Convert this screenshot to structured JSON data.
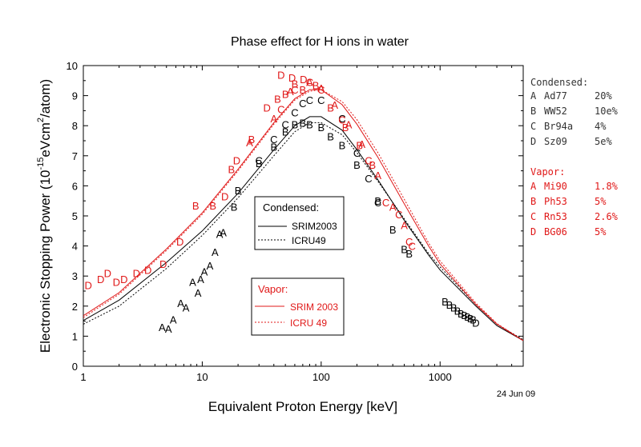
{
  "chart_data": {
    "type": "scatter",
    "title": "Phase effect for H ions in water",
    "xlabel": "Equivalent Proton Energy [keV]",
    "ylabel": {
      "pre": "Electronic Stopping Power (10",
      "exp": "-15",
      "mid": "eVcm",
      "sq": "2",
      "post": "/atom)"
    },
    "date": "24 Jun 09",
    "x_scale": "log",
    "xlim": [
      1,
      5000
    ],
    "ylim": [
      0,
      10
    ],
    "x_ticks": [
      {
        "v": 1,
        "label": "1"
      },
      {
        "v": 10,
        "label": "10"
      },
      {
        "v": 100,
        "label": "100"
      },
      {
        "v": 1000,
        "label": "1000"
      }
    ],
    "y_ticks": [
      "0",
      "1",
      "2",
      "3",
      "4",
      "5",
      "6",
      "7",
      "8",
      "9",
      "10"
    ],
    "grid": false,
    "colors": {
      "condensed": "#000000",
      "vapor": "#e01818"
    },
    "legend_condensed": {
      "title": "Condensed:",
      "entries": [
        {
          "label": "SRIM2003",
          "dash": "solid"
        },
        {
          "label": "ICRU49",
          "dash": "dotted"
        }
      ]
    },
    "legend_vapor": {
      "title": "Vapor:",
      "entries": [
        {
          "label": "SRIM 2003",
          "dash": "solid"
        },
        {
          "label": "ICRU 49",
          "dash": "dotted"
        }
      ]
    },
    "refs_condensed": {
      "title": "Condensed:",
      "items": [
        {
          "letter": "A",
          "ref": "Ad77",
          "err": "20%"
        },
        {
          "letter": "B",
          "ref": "WW52",
          "err": "10e%"
        },
        {
          "letter": "C",
          "ref": "Br94a",
          "err": "4%"
        },
        {
          "letter": "D",
          "ref": "Sz09",
          "err": "5e%"
        }
      ]
    },
    "refs_vapor": {
      "title": "Vapor:",
      "items": [
        {
          "letter": "A",
          "ref": "Mi90",
          "err": "1.8%"
        },
        {
          "letter": "B",
          "ref": "Ph53",
          "err": "5%"
        },
        {
          "letter": "C",
          "ref": "Rn53",
          "err": "2.6%"
        },
        {
          "letter": "D",
          "ref": "BG06",
          "err": "5%"
        }
      ]
    },
    "curves": [
      {
        "phase": "condensed",
        "dash": "solid",
        "points": [
          [
            1,
            1.52
          ],
          [
            2,
            2.2
          ],
          [
            5,
            3.45
          ],
          [
            10,
            4.5
          ],
          [
            20,
            5.75
          ],
          [
            40,
            7.2
          ],
          [
            60,
            8.0
          ],
          [
            80,
            8.3
          ],
          [
            100,
            8.3
          ],
          [
            150,
            7.85
          ],
          [
            200,
            7.2
          ],
          [
            300,
            6.2
          ],
          [
            500,
            4.85
          ],
          [
            800,
            3.7
          ],
          [
            1000,
            3.2
          ],
          [
            2000,
            2.0
          ],
          [
            3000,
            1.35
          ],
          [
            5000,
            0.85
          ]
        ]
      },
      {
        "phase": "condensed",
        "dash": "dotted",
        "points": [
          [
            1,
            1.4
          ],
          [
            2,
            2.0
          ],
          [
            5,
            3.25
          ],
          [
            10,
            4.35
          ],
          [
            20,
            5.6
          ],
          [
            40,
            7.0
          ],
          [
            60,
            7.8
          ],
          [
            80,
            8.1
          ],
          [
            100,
            8.1
          ],
          [
            150,
            7.7
          ],
          [
            200,
            7.1
          ],
          [
            300,
            6.15
          ],
          [
            500,
            4.9
          ],
          [
            800,
            3.75
          ],
          [
            1000,
            3.3
          ],
          [
            2000,
            2.05
          ],
          [
            3000,
            1.4
          ],
          [
            5000,
            0.88
          ]
        ]
      },
      {
        "phase": "vapor",
        "dash": "solid",
        "points": [
          [
            1,
            1.68
          ],
          [
            2,
            2.45
          ],
          [
            5,
            3.9
          ],
          [
            10,
            5.1
          ],
          [
            20,
            6.55
          ],
          [
            40,
            8.1
          ],
          [
            60,
            8.9
          ],
          [
            80,
            9.2
          ],
          [
            100,
            9.2
          ],
          [
            150,
            8.7
          ],
          [
            200,
            8.05
          ],
          [
            300,
            6.95
          ],
          [
            500,
            5.4
          ],
          [
            800,
            4.0
          ],
          [
            1000,
            3.4
          ],
          [
            2000,
            2.05
          ],
          [
            3000,
            1.4
          ],
          [
            5000,
            0.85
          ]
        ]
      },
      {
        "phase": "vapor",
        "dash": "dotted",
        "points": [
          [
            1,
            1.62
          ],
          [
            2,
            2.4
          ],
          [
            5,
            3.85
          ],
          [
            10,
            5.05
          ],
          [
            20,
            6.5
          ],
          [
            40,
            8.05
          ],
          [
            60,
            8.85
          ],
          [
            80,
            9.15
          ],
          [
            100,
            9.2
          ],
          [
            150,
            8.8
          ],
          [
            200,
            8.2
          ],
          [
            300,
            7.1
          ],
          [
            500,
            5.55
          ],
          [
            800,
            4.1
          ],
          [
            1000,
            3.5
          ],
          [
            2000,
            2.1
          ],
          [
            3000,
            1.42
          ],
          [
            5000,
            0.86
          ]
        ]
      }
    ],
    "series": [
      {
        "phase": "condensed",
        "letter": "A",
        "points": [
          [
            4.6,
            1.3
          ],
          [
            5.2,
            1.25
          ],
          [
            5.7,
            1.55
          ],
          [
            6.6,
            2.1
          ],
          [
            7.3,
            1.95
          ],
          [
            8.3,
            2.8
          ],
          [
            9.2,
            2.45
          ],
          [
            9.7,
            2.9
          ],
          [
            10.4,
            3.15
          ],
          [
            11.6,
            3.35
          ],
          [
            12.8,
            3.8
          ],
          [
            14.0,
            4.4
          ],
          [
            15.0,
            4.45
          ]
        ]
      },
      {
        "phase": "condensed",
        "letter": "B",
        "points": [
          [
            18.5,
            5.3
          ],
          [
            20.0,
            5.85
          ],
          [
            30.0,
            6.75
          ],
          [
            40.0,
            7.3
          ],
          [
            50.0,
            7.8
          ],
          [
            60.0,
            8.05
          ],
          [
            70.0,
            8.1
          ],
          [
            80.0,
            8.05
          ],
          [
            100.0,
            7.95
          ],
          [
            120.0,
            7.65
          ],
          [
            150.0,
            7.35
          ],
          [
            200.0,
            6.7
          ],
          [
            300.0,
            5.5
          ],
          [
            400.0,
            4.55
          ],
          [
            500.0,
            3.9
          ],
          [
            550.0,
            3.75
          ],
          [
            1100.0,
            2.15
          ],
          [
            1200.0,
            2.05
          ],
          [
            1300.0,
            1.95
          ],
          [
            1400.0,
            1.85
          ],
          [
            1500.0,
            1.75
          ],
          [
            1600.0,
            1.7
          ],
          [
            1700.0,
            1.65
          ],
          [
            1800.0,
            1.6
          ],
          [
            1900.0,
            1.55
          ]
        ]
      },
      {
        "phase": "condensed",
        "letter": "C",
        "points": [
          [
            30.0,
            6.85
          ],
          [
            40.0,
            7.55
          ],
          [
            50.0,
            8.05
          ],
          [
            60.0,
            8.45
          ],
          [
            70.0,
            8.75
          ],
          [
            80.0,
            8.85
          ],
          [
            100.0,
            8.85
          ],
          [
            150.0,
            8.25
          ],
          [
            200.0,
            7.1
          ],
          [
            250.0,
            6.25
          ],
          [
            300.0,
            5.45
          ]
        ]
      },
      {
        "phase": "condensed",
        "letter": "D",
        "points": [
          [
            2000.0,
            1.45
          ]
        ]
      },
      {
        "phase": "vapor",
        "letter": "A",
        "points": [
          [
            25.0,
            7.45
          ],
          [
            40.0,
            8.25
          ],
          [
            55.0,
            9.15
          ],
          [
            80.0,
            9.45
          ],
          [
            100.0,
            9.25
          ],
          [
            130.0,
            8.7
          ],
          [
            170.0,
            8.05
          ],
          [
            220.0,
            7.4
          ],
          [
            300.0,
            6.35
          ],
          [
            400.0,
            5.3
          ],
          [
            500.0,
            4.7
          ]
        ]
      },
      {
        "phase": "vapor",
        "letter": "B",
        "points": [
          [
            8.8,
            5.35
          ],
          [
            12.3,
            5.35
          ],
          [
            17.6,
            6.55
          ],
          [
            26.0,
            7.55
          ],
          [
            43.0,
            8.9
          ],
          [
            50.0,
            9.05
          ],
          [
            60.0,
            9.4
          ],
          [
            70.0,
            9.2
          ],
          [
            90.0,
            9.35
          ],
          [
            120.0,
            8.6
          ],
          [
            160.0,
            7.95
          ],
          [
            210.0,
            7.35
          ],
          [
            270.0,
            6.7
          ]
        ]
      },
      {
        "phase": "vapor",
        "letter": "C",
        "points": [
          [
            46.0,
            8.55
          ],
          [
            60.0,
            9.2
          ],
          [
            80.0,
            9.45
          ],
          [
            100.0,
            9.2
          ],
          [
            150.0,
            8.2
          ],
          [
            250.0,
            6.85
          ],
          [
            350.0,
            5.45
          ],
          [
            450.0,
            5.05
          ],
          [
            550.0,
            4.15
          ],
          [
            580.0,
            4.0
          ]
        ]
      },
      {
        "phase": "vapor",
        "letter": "D",
        "points": [
          [
            1.1,
            2.7
          ],
          [
            1.4,
            2.9
          ],
          [
            1.6,
            3.1
          ],
          [
            1.9,
            2.8
          ],
          [
            2.2,
            2.9
          ],
          [
            2.8,
            3.1
          ],
          [
            3.5,
            3.2
          ],
          [
            4.7,
            3.4
          ],
          [
            6.5,
            4.15
          ],
          [
            15.5,
            5.65
          ],
          [
            19.5,
            6.85
          ],
          [
            35.0,
            8.6
          ],
          [
            46.0,
            9.7
          ],
          [
            57.0,
            9.6
          ],
          [
            71.0,
            9.55
          ]
        ]
      }
    ]
  }
}
